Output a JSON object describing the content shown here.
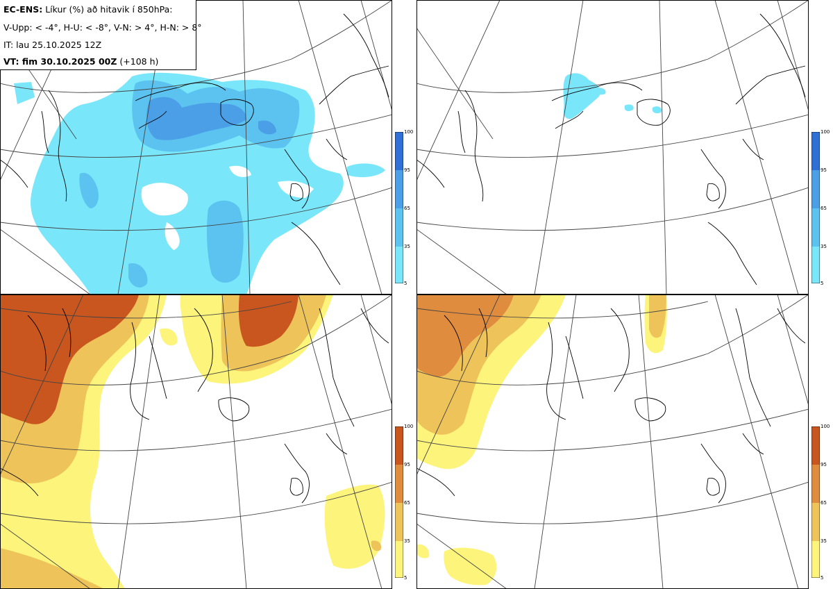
{
  "header": {
    "model": "EC-ENS:",
    "title": "Líkur (%) að hitavik í 850hPa:",
    "quadrants": "V-Upp: < -4°, H-U: < -8°, V-N: > 4°, H-N: > 8°",
    "initial_time": "IT: lau 25.10.2025 12Z",
    "valid_label": "VT: fim 30.10.2025 00Z",
    "lead_time": "(+108 h)"
  },
  "colorbar_cold": {
    "ticks": [
      "100",
      "95",
      "65",
      "35",
      "5"
    ],
    "colors": [
      "#2f6fd6",
      "#4a9fe6",
      "#5cc3f0",
      "#7ae6fa"
    ]
  },
  "colorbar_warm": {
    "ticks": [
      "100",
      "95",
      "65",
      "35",
      "5"
    ],
    "colors": [
      "#c8561e",
      "#df8c3e",
      "#eec45a",
      "#fdf47c"
    ]
  },
  "panels": [
    {
      "name": "upper-left",
      "field": "cold",
      "threshold": "< -4°"
    },
    {
      "name": "upper-right",
      "field": "cold",
      "threshold": "< -8°"
    },
    {
      "name": "lower-left",
      "field": "warm",
      "threshold": "> 4°"
    },
    {
      "name": "lower-right",
      "field": "warm",
      "threshold": "> 8°"
    }
  ]
}
